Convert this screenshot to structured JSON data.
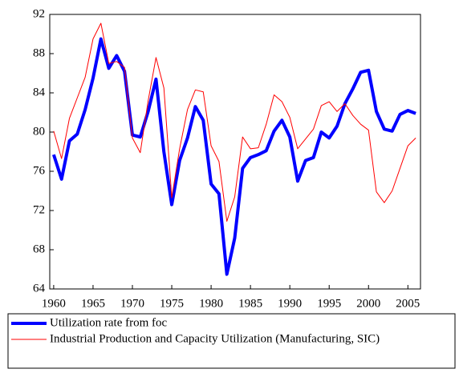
{
  "chart_data": {
    "type": "line",
    "x": [
      1960,
      1961,
      1962,
      1963,
      1964,
      1965,
      1966,
      1967,
      1968,
      1969,
      1970,
      1971,
      1972,
      1973,
      1974,
      1975,
      1976,
      1977,
      1978,
      1979,
      1980,
      1981,
      1982,
      1983,
      1984,
      1985,
      1986,
      1987,
      1988,
      1989,
      1990,
      1991,
      1992,
      1993,
      1994,
      1995,
      1996,
      1997,
      1998,
      1999,
      2000,
      2001,
      2002,
      2003,
      2004,
      2005,
      2006
    ],
    "series": [
      {
        "name": "Utilization rate from foc",
        "color": "#0000ff",
        "width": 4,
        "values": [
          77.7,
          75.2,
          79.1,
          79.8,
          82.3,
          85.5,
          89.5,
          86.5,
          87.8,
          86.2,
          79.7,
          79.5,
          82.1,
          85.4,
          78.0,
          72.6,
          77.1,
          79.4,
          82.6,
          81.2,
          74.7,
          73.7,
          65.5,
          69.2,
          76.3,
          77.4,
          77.7,
          78.1,
          80.1,
          81.2,
          79.5,
          75.0,
          77.1,
          77.4,
          80.0,
          79.4,
          80.6,
          82.9,
          84.4,
          86.1,
          86.3,
          82.1,
          80.3,
          80.1,
          81.8,
          82.2,
          81.9
        ]
      },
      {
        "name": "Industrial Production and Capacity Utilization (Manufacturing, SIC)",
        "color": "#ff0000",
        "width": 1,
        "values": [
          80.1,
          77.3,
          81.4,
          83.5,
          85.6,
          89.5,
          91.1,
          87.0,
          87.2,
          86.6,
          79.4,
          77.9,
          83.2,
          87.6,
          84.5,
          73.3,
          78.3,
          82.3,
          84.3,
          84.1,
          78.6,
          77.0,
          70.9,
          73.4,
          79.5,
          78.3,
          78.4,
          80.8,
          83.8,
          83.1,
          81.5,
          78.3,
          79.3,
          80.3,
          82.7,
          83.1,
          82.1,
          82.9,
          81.7,
          80.8,
          80.2,
          73.9,
          72.8,
          74.0,
          76.3,
          78.6,
          79.4
        ]
      }
    ],
    "xlim": [
      1959.5,
      2006.6
    ],
    "xticks": [
      1960,
      1965,
      1970,
      1975,
      1980,
      1985,
      1990,
      1995,
      2000,
      2005
    ],
    "ylim": [
      64,
      92
    ],
    "yticks": [
      64,
      68,
      72,
      76,
      80,
      84,
      88,
      92
    ],
    "grid": false
  }
}
